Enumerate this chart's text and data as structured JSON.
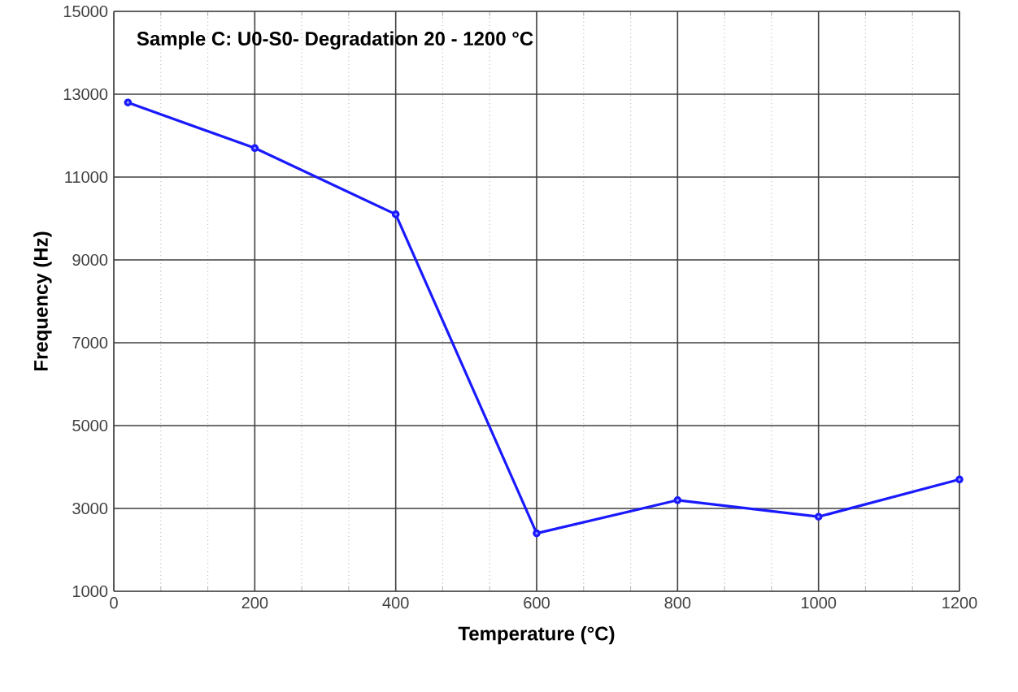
{
  "chart_data": {
    "type": "line",
    "title": "Sample C: U0-S0- Degradation 20 - 1200 °C",
    "xlabel": "Temperature (°C)",
    "ylabel": "Frequency (Hz)",
    "x": [
      20,
      200,
      400,
      600,
      800,
      1000,
      1200
    ],
    "series": [
      {
        "color": "#1a1aff",
        "values": [
          12800,
          11700,
          10100,
          2400,
          3200,
          2800,
          3700
        ]
      }
    ],
    "xlim": [
      0,
      1200
    ],
    "xticks": [
      0,
      200,
      400,
      600,
      800,
      1000,
      1200
    ],
    "ylim": [
      1000,
      15000
    ],
    "yticks": [
      1000,
      3000,
      5000,
      7000,
      9000,
      11000,
      13000,
      15000
    ],
    "grid": true,
    "marker": "circle",
    "line_style": "solid"
  }
}
